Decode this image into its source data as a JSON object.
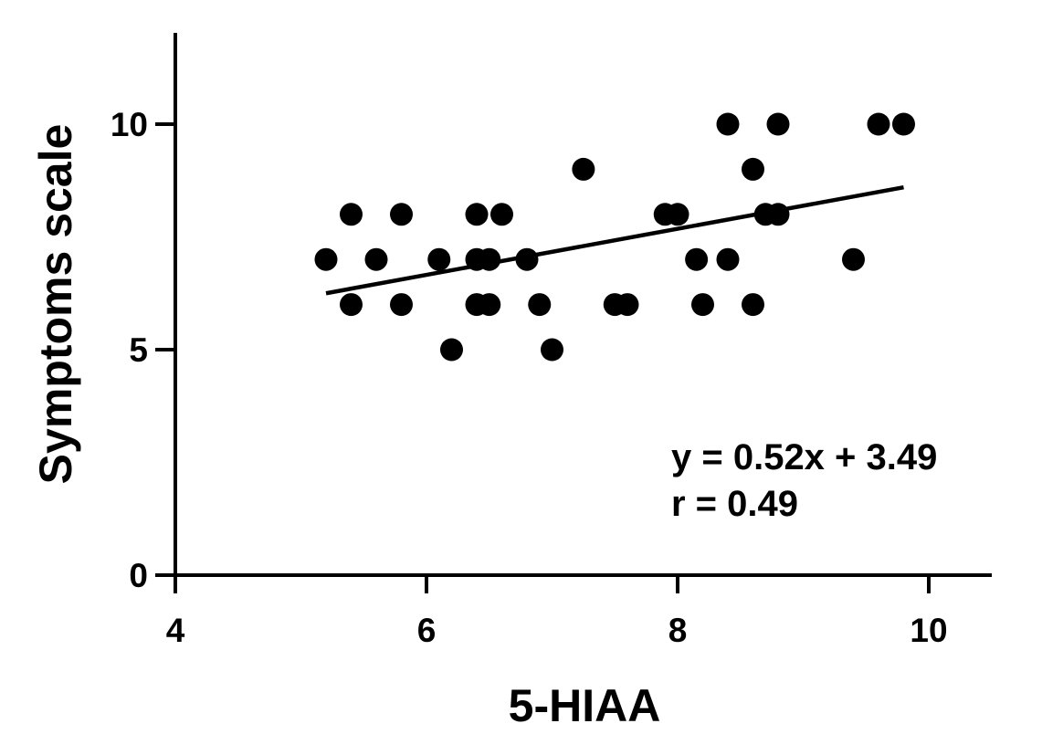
{
  "chart_data": {
    "type": "scatter",
    "xlabel": "5-HIAA",
    "ylabel": "Symptoms scale",
    "xlim": [
      4,
      10.5
    ],
    "ylim": [
      0,
      12
    ],
    "xticks": [
      4,
      6,
      8,
      10
    ],
    "yticks": [
      0,
      5,
      10
    ],
    "x_tick_labels": [
      "4",
      "6",
      "8",
      "10"
    ],
    "y_tick_labels": [
      "0",
      "5",
      "10"
    ],
    "grid": false,
    "point_color": "#000000",
    "points": [
      {
        "x": 5.2,
        "y": 7
      },
      {
        "x": 5.4,
        "y": 8
      },
      {
        "x": 5.4,
        "y": 6
      },
      {
        "x": 5.6,
        "y": 7
      },
      {
        "x": 5.8,
        "y": 8
      },
      {
        "x": 5.8,
        "y": 6
      },
      {
        "x": 6.1,
        "y": 7
      },
      {
        "x": 6.2,
        "y": 5
      },
      {
        "x": 6.4,
        "y": 8
      },
      {
        "x": 6.4,
        "y": 7
      },
      {
        "x": 6.4,
        "y": 6
      },
      {
        "x": 6.5,
        "y": 7
      },
      {
        "x": 6.5,
        "y": 6
      },
      {
        "x": 6.6,
        "y": 8
      },
      {
        "x": 6.8,
        "y": 7
      },
      {
        "x": 6.9,
        "y": 6
      },
      {
        "x": 7.0,
        "y": 5
      },
      {
        "x": 7.25,
        "y": 9
      },
      {
        "x": 7.5,
        "y": 6
      },
      {
        "x": 7.6,
        "y": 6
      },
      {
        "x": 7.9,
        "y": 8
      },
      {
        "x": 8.0,
        "y": 8
      },
      {
        "x": 8.15,
        "y": 7
      },
      {
        "x": 8.2,
        "y": 6
      },
      {
        "x": 8.4,
        "y": 10
      },
      {
        "x": 8.4,
        "y": 7
      },
      {
        "x": 8.6,
        "y": 9
      },
      {
        "x": 8.6,
        "y": 6
      },
      {
        "x": 8.7,
        "y": 8
      },
      {
        "x": 8.8,
        "y": 10
      },
      {
        "x": 8.8,
        "y": 8
      },
      {
        "x": 9.4,
        "y": 7
      },
      {
        "x": 9.6,
        "y": 10
      },
      {
        "x": 9.8,
        "y": 10
      }
    ],
    "regression": {
      "x_start": 5.2,
      "x_end": 9.8,
      "y_start": 6.25,
      "y_end": 8.6
    },
    "annotations": [
      "y = 0.52x + 3.49",
      "r = 0.49"
    ]
  }
}
